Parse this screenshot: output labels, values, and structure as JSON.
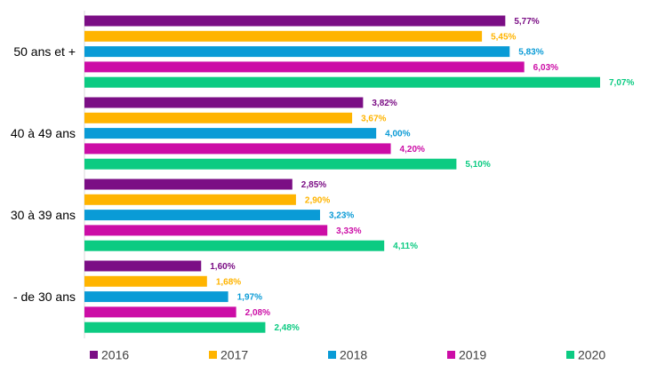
{
  "chart_data": {
    "type": "bar",
    "orientation": "horizontal",
    "categories": [
      "50 ans et +",
      "40 à 49 ans",
      "30 à 39 ans",
      "- de 30 ans"
    ],
    "series": [
      {
        "name": "2016",
        "color": "#7B0E85",
        "values": [
          5.77,
          3.82,
          2.85,
          1.6
        ],
        "labels": [
          "5,77%",
          "3,82%",
          "2,85%",
          "1,60%"
        ]
      },
      {
        "name": "2017",
        "color": "#FFB400",
        "values": [
          5.45,
          3.67,
          2.9,
          1.68
        ],
        "labels": [
          "5,45%",
          "3,67%",
          "2,90%",
          "1,68%"
        ]
      },
      {
        "name": "2018",
        "color": "#0A9BD6",
        "values": [
          5.83,
          4.0,
          3.23,
          1.97
        ],
        "labels": [
          "5,83%",
          "4,00%",
          "3,23%",
          "1,97%"
        ]
      },
      {
        "name": "2019",
        "color": "#CC0DA6",
        "values": [
          6.03,
          4.2,
          3.33,
          2.08
        ],
        "labels": [
          "6,03%",
          "4,20%",
          "3,33%",
          "2,08%"
        ]
      },
      {
        "name": "2020",
        "color": "#0CCB82",
        "values": [
          7.07,
          5.1,
          4.11,
          2.48
        ],
        "labels": [
          "7,07%",
          "5,10%",
          "4,11%",
          "2,48%"
        ]
      }
    ],
    "xlim": [
      0,
      7.5
    ],
    "grid": false,
    "legend": "bottom"
  }
}
